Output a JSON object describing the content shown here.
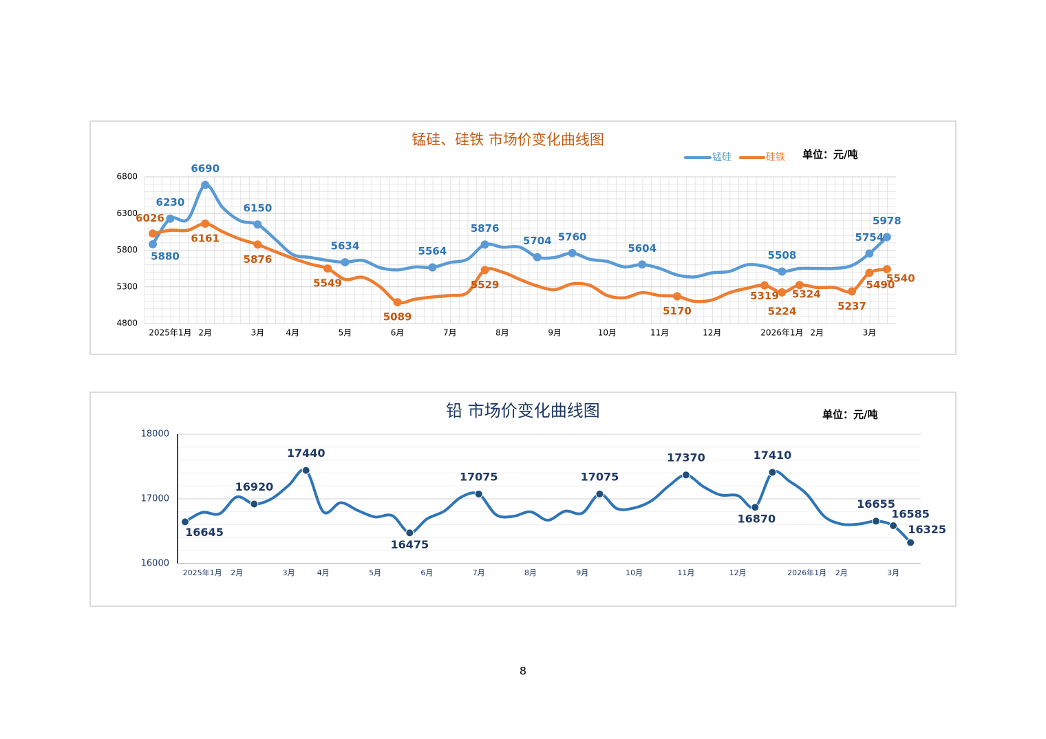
{
  "chart_data": [
    {
      "type": "line",
      "title": "锰硅、硅铁 市场价变化曲线图",
      "unit_label": "单位：元/吨",
      "categories": [
        null,
        "2025年1月",
        null,
        "2月",
        null,
        null,
        "3月",
        null,
        "4月",
        null,
        null,
        "5月",
        null,
        null,
        "6月",
        null,
        null,
        "7月",
        null,
        null,
        "8月",
        null,
        null,
        "9月",
        null,
        null,
        "10月",
        null,
        null,
        "11月",
        null,
        null,
        "12月",
        null,
        null,
        null,
        "2026年1月",
        null,
        "2月",
        null,
        null,
        "3月",
        null
      ],
      "series": [
        {
          "name": "锰硅",
          "color": "#5b9bd5",
          "markers": [
            0,
            1,
            3,
            6,
            11,
            16,
            19,
            22,
            24,
            28,
            36,
            41,
            42
          ],
          "values": [
            5880,
            6230,
            6220,
            6690,
            6380,
            6200,
            6150,
            5950,
            5740,
            5700,
            5660,
            5634,
            5660,
            5560,
            5530,
            5570,
            5564,
            5630,
            5675,
            5876,
            5840,
            5840,
            5704,
            5700,
            5760,
            5675,
            5645,
            5570,
            5604,
            5550,
            5460,
            5435,
            5490,
            5510,
            5600,
            5580,
            5508,
            5550,
            5550,
            5550,
            5590,
            5754,
            5978
          ]
        },
        {
          "name": "硅铁",
          "color": "#ed7d31",
          "markers": [
            0,
            3,
            6,
            10,
            14,
            19,
            30,
            35,
            36,
            37,
            40,
            41,
            42
          ],
          "values": [
            6026,
            6070,
            6070,
            6161,
            6050,
            5950,
            5876,
            5780,
            5690,
            5610,
            5549,
            5400,
            5430,
            5300,
            5089,
            5130,
            5160,
            5180,
            5220,
            5529,
            5500,
            5400,
            5310,
            5260,
            5340,
            5320,
            5180,
            5150,
            5220,
            5180,
            5170,
            5100,
            5120,
            5220,
            5280,
            5319,
            5224,
            5324,
            5290,
            5290,
            5237,
            5490,
            5540
          ]
        }
      ],
      "ylim": [
        4800,
        6800
      ],
      "yticks": [
        4800,
        5300,
        5800,
        6300,
        6800
      ],
      "grid": true,
      "legend": "top-right"
    },
    {
      "type": "line",
      "title": "铅 市场价变化曲线图",
      "unit_label": "单位：元/吨",
      "categories": [
        null,
        "2025年1月",
        null,
        "2月",
        null,
        null,
        "3月",
        null,
        "4月",
        null,
        null,
        "5月",
        null,
        null,
        "6月",
        null,
        null,
        "7月",
        null,
        null,
        "8月",
        null,
        null,
        "9月",
        null,
        null,
        "10月",
        null,
        null,
        "11月",
        null,
        null,
        "12月",
        null,
        null,
        null,
        "2026年1月",
        null,
        "2月",
        null,
        null,
        "3月",
        null
      ],
      "color": "#2e75b6",
      "markers": [
        0,
        4,
        7,
        13,
        17,
        24,
        29,
        33,
        34,
        40,
        41,
        42
      ],
      "values": [
        16645,
        16790,
        16770,
        17030,
        16920,
        17000,
        17210,
        17440,
        16800,
        16940,
        16820,
        16720,
        16740,
        16475,
        16690,
        16810,
        17030,
        17075,
        16755,
        16730,
        16800,
        16670,
        16810,
        16780,
        17075,
        16850,
        16860,
        16970,
        17200,
        17370,
        17190,
        17060,
        17050,
        16870,
        17410,
        17270,
        17070,
        16730,
        16610,
        16610,
        16655,
        16585,
        16325
      ],
      "ylim": [
        16000,
        18000
      ],
      "yticks": [
        16000,
        17000,
        18000
      ],
      "grid": true
    }
  ],
  "page_number": "8"
}
